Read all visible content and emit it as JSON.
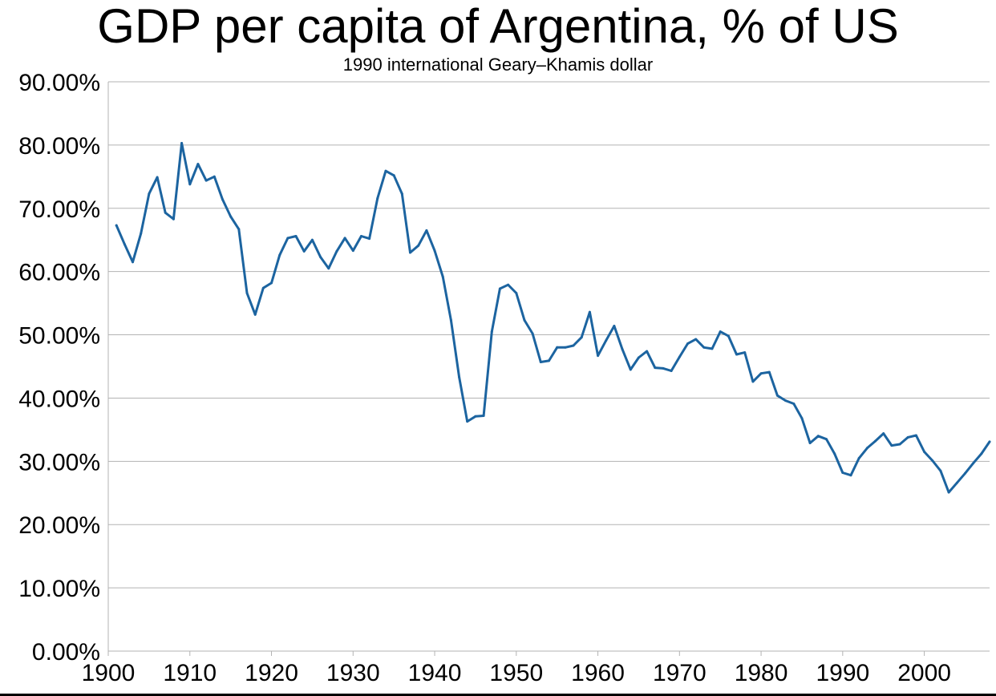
{
  "chart_data": {
    "type": "line",
    "title": "GDP per capita of Argentina, % of US",
    "subtitle": "1990 international Geary–Khamis dollar",
    "xlabel": "",
    "ylabel": "",
    "xlim": [
      1900,
      2008
    ],
    "ylim": [
      0,
      90
    ],
    "x_ticks": [
      1900,
      1910,
      1920,
      1930,
      1940,
      1950,
      1960,
      1970,
      1980,
      1990,
      2000
    ],
    "x_tick_labels": [
      "1900",
      "1910",
      "1920",
      "1930",
      "1940",
      "1950",
      "1960",
      "1970",
      "1980",
      "1990",
      "2000"
    ],
    "y_ticks": [
      0,
      10,
      20,
      30,
      40,
      50,
      60,
      70,
      80,
      90
    ],
    "y_tick_labels": [
      "0.00%",
      "10.00%",
      "20.00%",
      "30.00%",
      "40.00%",
      "50.00%",
      "60.00%",
      "70.00%",
      "80.00%",
      "90.00%"
    ],
    "grid": "horizontal",
    "legend": "none",
    "series": [
      {
        "color": "#1c64a0",
        "x": [
          1901,
          1902,
          1903,
          1904,
          1905,
          1906,
          1907,
          1908,
          1909,
          1910,
          1911,
          1912,
          1913,
          1914,
          1915,
          1916,
          1917,
          1918,
          1919,
          1920,
          1921,
          1922,
          1923,
          1924,
          1925,
          1926,
          1927,
          1928,
          1929,
          1930,
          1931,
          1932,
          1933,
          1934,
          1935,
          1936,
          1937,
          1938,
          1939,
          1940,
          1941,
          1942,
          1943,
          1944,
          1945,
          1946,
          1947,
          1948,
          1949,
          1950,
          1951,
          1952,
          1953,
          1954,
          1955,
          1956,
          1957,
          1958,
          1959,
          1960,
          1961,
          1962,
          1963,
          1964,
          1965,
          1966,
          1967,
          1968,
          1969,
          1970,
          1971,
          1972,
          1973,
          1974,
          1975,
          1976,
          1977,
          1978,
          1979,
          1980,
          1981,
          1982,
          1983,
          1984,
          1985,
          1986,
          1987,
          1988,
          1989,
          1990,
          1991,
          1992,
          1993,
          1994,
          1995,
          1996,
          1997,
          1998,
          1999,
          2000,
          2001,
          2002,
          2003,
          2004,
          2005,
          2006,
          2007,
          2008
        ],
        "values": [
          67.3,
          64.3,
          61.5,
          66.0,
          72.3,
          74.9,
          69.3,
          68.3,
          80.3,
          73.8,
          77.0,
          74.4,
          75.0,
          71.4,
          68.7,
          66.7,
          56.6,
          53.2,
          57.4,
          58.2,
          62.6,
          65.3,
          65.6,
          63.2,
          65.0,
          62.3,
          60.5,
          63.2,
          65.3,
          63.3,
          65.6,
          65.2,
          71.6,
          75.9,
          75.2,
          72.3,
          63.0,
          64.1,
          66.5,
          63.3,
          59.2,
          52.3,
          43.3,
          36.3,
          37.1,
          37.2,
          50.5,
          57.3,
          57.9,
          56.6,
          52.3,
          50.2,
          45.7,
          45.9,
          48.0,
          48.0,
          48.3,
          49.6,
          53.6,
          46.7,
          49.1,
          51.4,
          47.7,
          44.5,
          46.4,
          47.4,
          44.8,
          44.7,
          44.3,
          46.5,
          48.6,
          49.3,
          48.0,
          47.8,
          50.5,
          49.8,
          46.9,
          47.2,
          42.6,
          43.9,
          44.1,
          40.4,
          39.6,
          39.1,
          36.8,
          32.9,
          34.0,
          33.5,
          31.2,
          28.2,
          27.8,
          30.5,
          32.1,
          33.2,
          34.4,
          32.5,
          32.7,
          33.8,
          34.1,
          31.5,
          30.1,
          28.5,
          25.1,
          26.6,
          28.1,
          29.7,
          31.2,
          33.1
        ]
      }
    ]
  }
}
